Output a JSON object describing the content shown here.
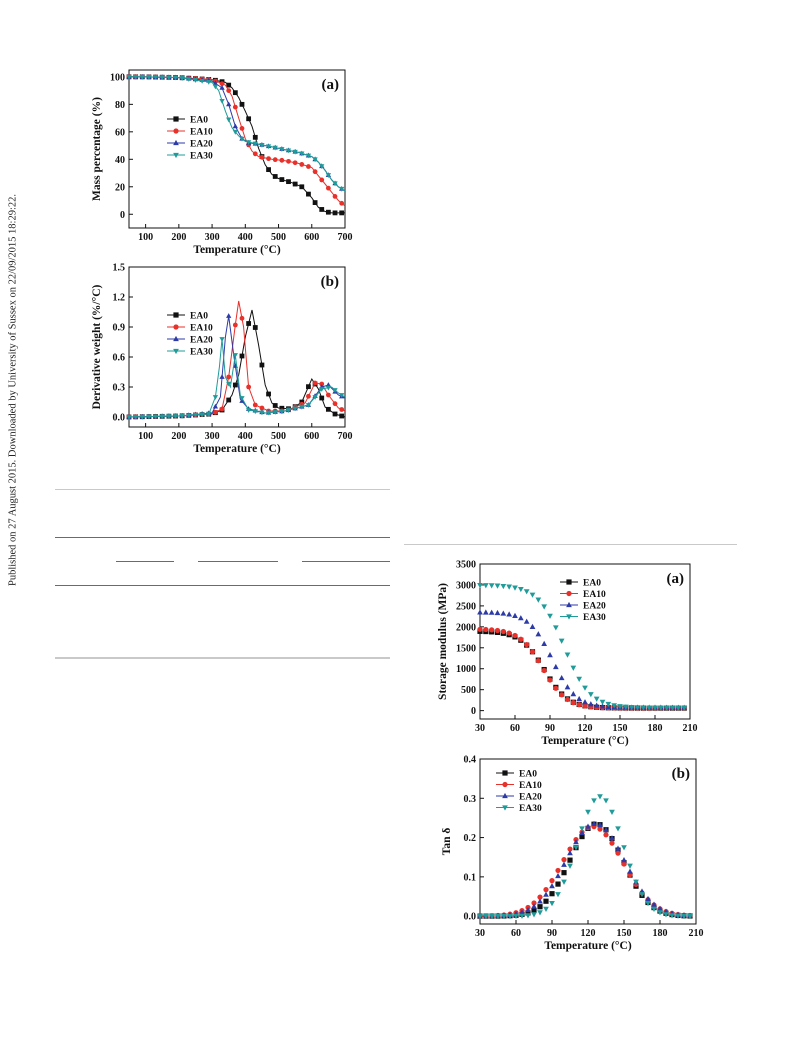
{
  "side_note": "Published on 27 August 2015. Downloaded by University of Sussex on 22/09/2015 18:29:22.",
  "chart_data": [
    {
      "id": "tga-mass",
      "type": "line",
      "panel_label": "(a)",
      "xlabel": "Temperature (°C)",
      "ylabel": "Mass percentage (%)",
      "xlim": [
        50,
        700
      ],
      "ylim": [
        -10,
        105
      ],
      "xticks": [
        100,
        200,
        300,
        400,
        500,
        600,
        700
      ],
      "yticks": [
        0,
        20,
        40,
        60,
        80,
        100
      ],
      "legend_position": "left",
      "series": [
        {
          "name": "EA0",
          "color": "#111111",
          "marker": "square",
          "points": [
            [
              50,
              100
            ],
            [
              100,
              100
            ],
            [
              200,
              99.5
            ],
            [
              300,
              98
            ],
            [
              340,
              96
            ],
            [
              360,
              92
            ],
            [
              380,
              85
            ],
            [
              400,
              75
            ],
            [
              420,
              64
            ],
            [
              440,
              48
            ],
            [
              460,
              36
            ],
            [
              480,
              29
            ],
            [
              500,
              26
            ],
            [
              540,
              23
            ],
            [
              570,
              20
            ],
            [
              600,
              12
            ],
            [
              620,
              5
            ],
            [
              640,
              2
            ],
            [
              660,
              1
            ],
            [
              700,
              1
            ]
          ]
        },
        {
          "name": "EA10",
          "color": "#e8312b",
          "marker": "circle",
          "points": [
            [
              50,
              100
            ],
            [
              100,
              100
            ],
            [
              200,
              99.5
            ],
            [
              300,
              98
            ],
            [
              340,
              94
            ],
            [
              360,
              86
            ],
            [
              380,
              70
            ],
            [
              400,
              55
            ],
            [
              420,
              46
            ],
            [
              440,
              42
            ],
            [
              480,
              40
            ],
            [
              520,
              39
            ],
            [
              560,
              37
            ],
            [
              600,
              34
            ],
            [
              620,
              28
            ],
            [
              640,
              22
            ],
            [
              660,
              16
            ],
            [
              680,
              10
            ],
            [
              700,
              6
            ]
          ]
        },
        {
          "name": "EA20",
          "color": "#2d3ba8",
          "marker": "triangle-up",
          "points": [
            [
              50,
              100
            ],
            [
              100,
              100
            ],
            [
              200,
              99.5
            ],
            [
              300,
              97
            ],
            [
              330,
              92
            ],
            [
              350,
              80
            ],
            [
              370,
              64
            ],
            [
              390,
              55
            ],
            [
              410,
              52
            ],
            [
              440,
              51
            ],
            [
              480,
              49
            ],
            [
              520,
              47
            ],
            [
              560,
              45
            ],
            [
              600,
              42
            ],
            [
              620,
              38
            ],
            [
              640,
              32
            ],
            [
              660,
              25
            ],
            [
              680,
              20
            ],
            [
              700,
              17
            ]
          ]
        },
        {
          "name": "EA30",
          "color": "#1f9c99",
          "marker": "triangle-down",
          "points": [
            [
              50,
              100
            ],
            [
              100,
              100
            ],
            [
              200,
              99.5
            ],
            [
              300,
              96
            ],
            [
              320,
              90
            ],
            [
              340,
              75
            ],
            [
              360,
              63
            ],
            [
              380,
              57
            ],
            [
              400,
              53
            ],
            [
              440,
              51
            ],
            [
              480,
              49
            ],
            [
              520,
              47
            ],
            [
              560,
              45
            ],
            [
              600,
              42
            ],
            [
              620,
              38
            ],
            [
              640,
              32
            ],
            [
              660,
              25
            ],
            [
              680,
              20
            ],
            [
              700,
              17
            ]
          ]
        }
      ]
    },
    {
      "id": "tga-derivative",
      "type": "line",
      "panel_label": "(b)",
      "xlabel": "Temperature (°C)",
      "ylabel": "Derivative weight (%/°C)",
      "xlim": [
        50,
        700
      ],
      "ylim": [
        -0.1,
        1.5
      ],
      "xticks": [
        100,
        200,
        300,
        400,
        500,
        600,
        700
      ],
      "yticks": [
        0.0,
        0.3,
        0.6,
        0.9,
        1.2,
        1.5
      ],
      "series": [
        {
          "name": "EA0",
          "color": "#111111",
          "marker": "square",
          "points": [
            [
              50,
              0
            ],
            [
              200,
              0.01
            ],
            [
              300,
              0.03
            ],
            [
              330,
              0.07
            ],
            [
              360,
              0.22
            ],
            [
              380,
              0.42
            ],
            [
              400,
              0.8
            ],
            [
              420,
              1.07
            ],
            [
              440,
              0.72
            ],
            [
              460,
              0.32
            ],
            [
              480,
              0.14
            ],
            [
              500,
              0.09
            ],
            [
              540,
              0.08
            ],
            [
              570,
              0.15
            ],
            [
              600,
              0.38
            ],
            [
              620,
              0.28
            ],
            [
              640,
              0.1
            ],
            [
              670,
              0.03
            ],
            [
              700,
              0
            ]
          ]
        },
        {
          "name": "EA10",
          "color": "#e8312b",
          "marker": "circle",
          "points": [
            [
              50,
              0
            ],
            [
              200,
              0.01
            ],
            [
              300,
              0.03
            ],
            [
              330,
              0.08
            ],
            [
              350,
              0.4
            ],
            [
              370,
              0.92
            ],
            [
              380,
              1.16
            ],
            [
              395,
              0.9
            ],
            [
              410,
              0.3
            ],
            [
              430,
              0.12
            ],
            [
              470,
              0.06
            ],
            [
              520,
              0.06
            ],
            [
              580,
              0.14
            ],
            [
              610,
              0.34
            ],
            [
              630,
              0.33
            ],
            [
              650,
              0.22
            ],
            [
              680,
              0.09
            ],
            [
              700,
              0.06
            ]
          ]
        },
        {
          "name": "EA20",
          "color": "#2d3ba8",
          "marker": "triangle-up",
          "points": [
            [
              50,
              0
            ],
            [
              200,
              0.01
            ],
            [
              300,
              0.04
            ],
            [
              325,
              0.2
            ],
            [
              340,
              0.8
            ],
            [
              350,
              1.01
            ],
            [
              365,
              0.62
            ],
            [
              385,
              0.18
            ],
            [
              410,
              0.08
            ],
            [
              460,
              0.04
            ],
            [
              520,
              0.06
            ],
            [
              590,
              0.12
            ],
            [
              630,
              0.3
            ],
            [
              650,
              0.32
            ],
            [
              680,
              0.22
            ],
            [
              700,
              0.19
            ]
          ]
        },
        {
          "name": "EA30",
          "color": "#1f9c99",
          "marker": "triangle-down",
          "points": [
            [
              50,
              0
            ],
            [
              200,
              0.01
            ],
            [
              290,
              0.03
            ],
            [
              310,
              0.2
            ],
            [
              322,
              0.5
            ],
            [
              330,
              0.78
            ],
            [
              340,
              0.4
            ],
            [
              355,
              0.3
            ],
            [
              370,
              0.62
            ],
            [
              385,
              0.22
            ],
            [
              410,
              0.07
            ],
            [
              460,
              0.04
            ],
            [
              520,
              0.06
            ],
            [
              590,
              0.12
            ],
            [
              630,
              0.28
            ],
            [
              660,
              0.3
            ],
            [
              680,
              0.24
            ],
            [
              700,
              0.2
            ]
          ]
        }
      ]
    },
    {
      "id": "dma-storage",
      "type": "scatter",
      "panel_label": "(a)",
      "xlabel": "Temperature (°C)",
      "ylabel": "Storage modulus (MPa)",
      "xlim": [
        30,
        210
      ],
      "ylim": [
        -200,
        3500
      ],
      "xticks": [
        30,
        60,
        90,
        120,
        150,
        180,
        210
      ],
      "yticks": [
        0,
        500,
        1000,
        1500,
        2000,
        2500,
        3000,
        3500
      ],
      "legend_position": "top-right",
      "series": [
        {
          "name": "EA0",
          "color": "#111111",
          "marker": "square",
          "sigmoid": {
            "high": 1900,
            "low": 60,
            "mid": 85,
            "width": 10
          }
        },
        {
          "name": "EA10",
          "color": "#e8312b",
          "marker": "circle",
          "sigmoid": {
            "high": 1950,
            "low": 60,
            "mid": 84,
            "width": 10
          }
        },
        {
          "name": "EA20",
          "color": "#2d3ba8",
          "marker": "triangle-up",
          "sigmoid": {
            "high": 2350,
            "low": 70,
            "mid": 92,
            "width": 10
          }
        },
        {
          "name": "EA30",
          "color": "#1f9c99",
          "marker": "triangle-down",
          "sigmoid": {
            "high": 3000,
            "low": 70,
            "mid": 102,
            "width": 11
          }
        }
      ]
    },
    {
      "id": "dma-tan-delta",
      "type": "scatter",
      "panel_label": "(b)",
      "xlabel": "Temperature (°C)",
      "ylabel": "Tan δ",
      "xlim": [
        30,
        210
      ],
      "ylim": [
        -0.02,
        0.4
      ],
      "xticks": [
        30,
        60,
        90,
        120,
        150,
        180,
        210
      ],
      "yticks": [
        0.0,
        0.1,
        0.2,
        0.3,
        0.4
      ],
      "legend_position": "top-left",
      "series": [
        {
          "name": "EA0",
          "color": "#111111",
          "marker": "square",
          "peak": {
            "height": 0.235,
            "center": 127,
            "width": 22
          }
        },
        {
          "name": "EA10",
          "color": "#e8312b",
          "marker": "circle",
          "peak": {
            "height": 0.228,
            "center": 124,
            "width": 25
          }
        },
        {
          "name": "EA20",
          "color": "#2d3ba8",
          "marker": "triangle-up",
          "peak": {
            "height": 0.235,
            "center": 126,
            "width": 24
          }
        },
        {
          "name": "EA30",
          "color": "#1f9c99",
          "marker": "triangle-down",
          "peak": {
            "height": 0.305,
            "center": 130,
            "width": 19
          }
        }
      ]
    }
  ]
}
